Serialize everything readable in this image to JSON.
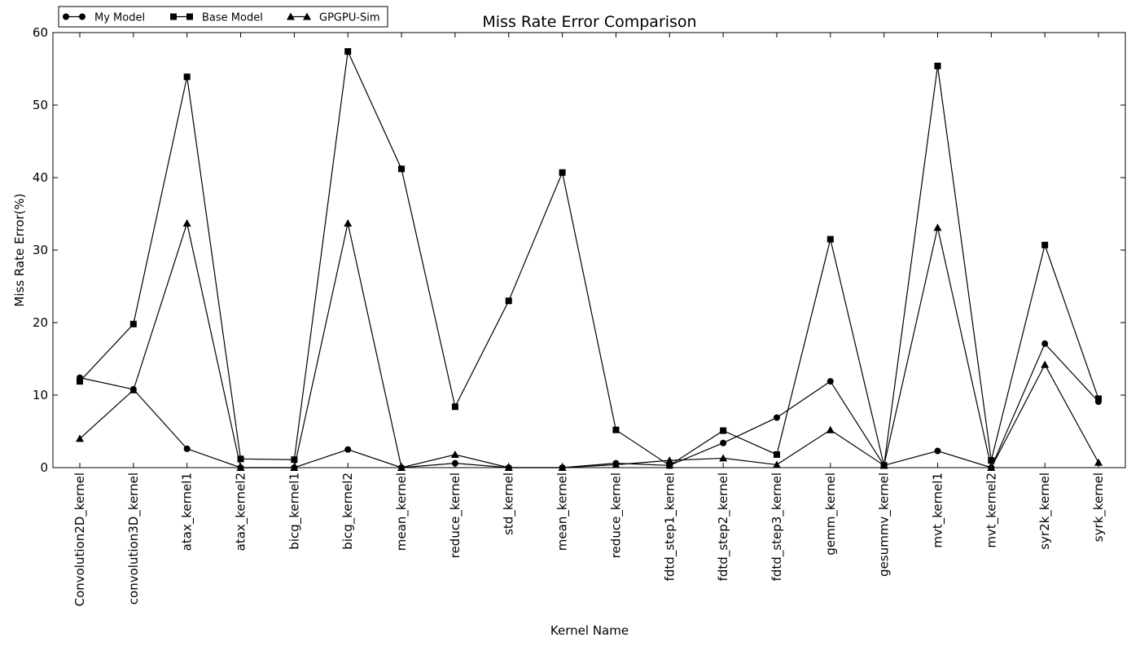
{
  "chart_data": {
    "type": "line",
    "title": "Miss Rate Error Comparison",
    "xlabel": "Kernel Name",
    "ylabel": "Miss Rate Error(%)",
    "ylim": [
      0,
      60
    ],
    "yticks": [
      0,
      10,
      20,
      30,
      40,
      50,
      60
    ],
    "grid": false,
    "legend_position": "top-left",
    "categories": [
      "Convolution2D_kernel",
      "convolution3D_kernel",
      "atax_kernel1",
      "atax_kernel2",
      "bicg_kernel1",
      "bicg_kernel2",
      "mean_kernel",
      "reduce_kernel",
      "std_kernel",
      "mean_kernel",
      "reduce_kernel",
      "fdtd_step1_kernel",
      "fdtd_step2_kernel",
      "fdtd_step3_kernel",
      "gemm_kernel",
      "gesummv_kernel",
      "mvt_kernel1",
      "mvt_kernel2",
      "syr2k_kernel",
      "syrk_kernel"
    ],
    "series": [
      {
        "name": "My Model",
        "marker": "circle",
        "color": "#000000",
        "values": [
          12.4,
          10.8,
          2.6,
          0.0,
          0.0,
          2.5,
          0.0,
          0.6,
          0.0,
          0.0,
          0.6,
          0.3,
          3.4,
          6.9,
          11.9,
          0.3,
          2.3,
          0.0,
          17.1,
          9.1
        ]
      },
      {
        "name": "Base Model",
        "marker": "square",
        "color": "#000000",
        "values": [
          11.9,
          19.8,
          53.9,
          1.2,
          1.1,
          57.4,
          41.2,
          8.4,
          23.0,
          40.7,
          5.2,
          0.3,
          5.1,
          1.8,
          31.5,
          0.3,
          55.4,
          1.0,
          30.7,
          9.5
        ]
      },
      {
        "name": "GPGPU-Sim",
        "marker": "triangle",
        "color": "#000000",
        "values": [
          4.0,
          10.7,
          33.7,
          0.0,
          0.0,
          33.7,
          0.0,
          1.8,
          0.0,
          0.0,
          0.4,
          1.0,
          1.3,
          0.4,
          5.2,
          0.3,
          33.1,
          0.0,
          14.2,
          0.7
        ]
      }
    ]
  }
}
